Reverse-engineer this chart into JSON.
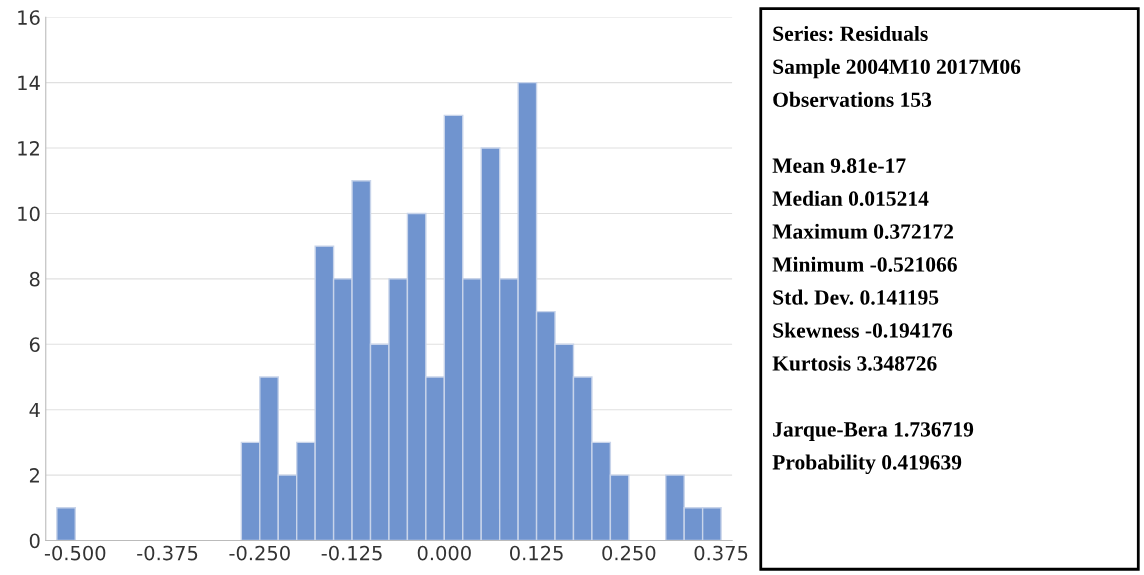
{
  "chart_data": {
    "type": "histogram",
    "bins": [
      -0.525,
      -0.5,
      -0.475,
      -0.45,
      -0.425,
      -0.4,
      -0.375,
      -0.35,
      -0.325,
      -0.3,
      -0.275,
      -0.25,
      -0.225,
      -0.2,
      -0.175,
      -0.15,
      -0.125,
      -0.1,
      -0.075,
      -0.05,
      -0.025,
      0.0,
      0.025,
      0.05,
      0.075,
      0.1,
      0.125,
      0.15,
      0.175,
      0.2,
      0.225,
      0.25,
      0.275,
      0.3,
      0.325,
      0.35,
      0.375
    ],
    "values": [
      1,
      0,
      0,
      0,
      0,
      0,
      0,
      0,
      0,
      0,
      3,
      5,
      2,
      3,
      9,
      8,
      11,
      6,
      8,
      10,
      5,
      13,
      8,
      12,
      8,
      14,
      7,
      6,
      5,
      3,
      2,
      0,
      0,
      2,
      1,
      1
    ],
    "color": "#7094cf",
    "xlim": [
      -0.54,
      0.39
    ],
    "xticks": [
      {
        "value": -0.5,
        "label": "-0.500"
      },
      {
        "value": -0.375,
        "label": "-0.375"
      },
      {
        "value": -0.25,
        "label": "-0.250"
      },
      {
        "value": -0.125,
        "label": "-0.125"
      },
      {
        "value": 0.0,
        "label": "0.000"
      },
      {
        "value": 0.125,
        "label": "0.125"
      },
      {
        "value": 0.25,
        "label": "0.250"
      },
      {
        "value": 0.375,
        "label": "0.375"
      }
    ],
    "ylim": [
      0,
      16
    ],
    "yticks": [
      0,
      2,
      4,
      6,
      8,
      10,
      12,
      14,
      16
    ],
    "grid": "y",
    "annotations": [
      "Series: Residuals\nSample 2004M10 2017M06\nObservations 153",
      "Mean 9.81e-17\nMedian 0.015214\nMaximum 0.372172\nMinimum -0.521066\nStd. Dev. 0.141195\nSkewness -0.194176\nKurtosis 3.348726",
      "Jarque-Bera 1.736719\nProbability 0.419639"
    ]
  }
}
